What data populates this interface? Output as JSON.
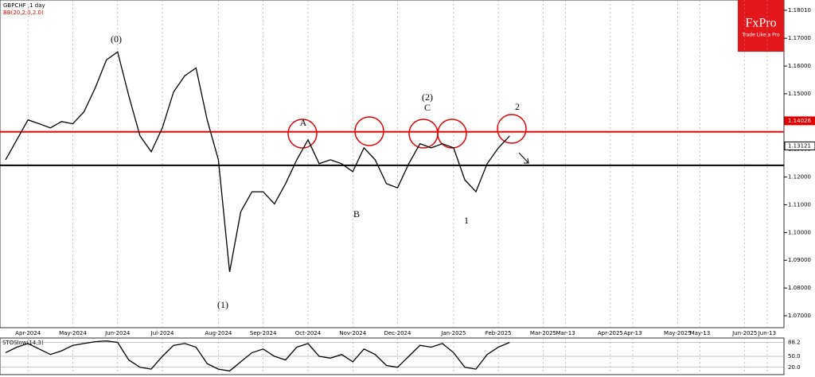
{
  "chart_data": {
    "type": "line",
    "title": "GBPCHF ,1 day",
    "indicator": "BB(20,2,0,2.0)",
    "logo": "FxPro",
    "tagline": "Trade Like a Pro",
    "categories": [
      null,
      null,
      "Apr-2024",
      null,
      null,
      null,
      "May-2024",
      null,
      null,
      null,
      "Jun-2024",
      null,
      null,
      null,
      "Jul-2024",
      null,
      null,
      null,
      null,
      "Aug-2024",
      null,
      null,
      null,
      "Sep-2024",
      null,
      null,
      null,
      "Oct-2024",
      null,
      null,
      null,
      "Nov-2024",
      null,
      null,
      null,
      "Dec-2024",
      null,
      null,
      null,
      null,
      "Jan-2025",
      null,
      null,
      null,
      "Feb-2025",
      null,
      null,
      null,
      "Mar-2025",
      null,
      "Mar-13",
      null,
      null,
      null,
      "Apr-2025",
      null,
      "Apr-13",
      null,
      null,
      null,
      "May-2025",
      null,
      "May-13",
      null,
      null,
      null,
      "Jun-2025",
      null,
      "Jun-13",
      null
    ],
    "series": [
      {
        "color": "#000000",
        "values": [
          1.1262,
          1.1334,
          1.1406,
          1.1392,
          1.1377,
          1.14,
          1.1392,
          1.1435,
          1.1521,
          1.1622,
          1.1651,
          1.1493,
          1.1348,
          1.1291,
          1.1377,
          1.1507,
          1.1565,
          1.1593,
          1.1406,
          1.1262,
          1.0858,
          1.1075,
          1.1147,
          1.1147,
          1.1103,
          1.1176,
          1.1262,
          1.1334,
          1.1248,
          1.1262,
          1.1248,
          1.1219,
          1.1305,
          1.1262,
          1.1176,
          1.1161,
          1.1248,
          1.132,
          1.1305,
          1.132,
          1.1305,
          1.119,
          1.1147,
          1.1248,
          1.1305,
          1.1348,
          null,
          null,
          null,
          null,
          null,
          null,
          null,
          null,
          null,
          null,
          null,
          null,
          null,
          null,
          null,
          null,
          null,
          null,
          null,
          null,
          null,
          null,
          null,
          null
        ]
      }
    ],
    "ylim": [
      1.0657,
      1.1838
    ],
    "yticks": [
      {
        "value": 1.1801,
        "label": "1.18010"
      },
      {
        "value": 1.17,
        "label": "1.17000"
      },
      {
        "value": 1.16,
        "label": "1.16000"
      },
      {
        "value": 1.15,
        "label": "1.15000"
      },
      {
        "value": 1.14,
        "label": "1.14000"
      },
      {
        "value": 1.13,
        "label": "1.13000"
      },
      {
        "value": 1.12,
        "label": "1.12000"
      },
      {
        "value": 1.11,
        "label": "1.11000"
      },
      {
        "value": 1.1,
        "label": "1.10000"
      },
      {
        "value": 1.09,
        "label": "1.09000"
      },
      {
        "value": 1.08,
        "label": "1.08000"
      },
      {
        "value": 1.07,
        "label": "1.07000"
      }
    ],
    "price_labels": [
      {
        "value": 1.14026,
        "label": "1.14026",
        "color": "#e00000"
      },
      {
        "value": 1.13121,
        "label": "1.13121",
        "color": "#000000"
      }
    ],
    "levels": [
      {
        "value": 1.1363,
        "color": "#ff0000"
      },
      {
        "value": 1.1242,
        "color": "#000000"
      }
    ],
    "annotations": [
      "(0)",
      "(1)",
      "A",
      "B",
      "(2)",
      "C",
      "1",
      "2"
    ],
    "grid": true,
    "oscillator": {
      "title": "STOSlow(14,3)",
      "ylim": [
        0,
        100
      ],
      "yticks": [
        {
          "value": 88.2,
          "label": "88.2"
        },
        {
          "value": 50,
          "label": "50.0"
        },
        {
          "value": 20,
          "label": "20.0"
        }
      ],
      "values": [
        60,
        75,
        85,
        70,
        55,
        65,
        80,
        85,
        90,
        92,
        88,
        40,
        20,
        15,
        50,
        80,
        85,
        75,
        30,
        15,
        10,
        35,
        60,
        70,
        50,
        40,
        75,
        85,
        50,
        45,
        55,
        35,
        70,
        55,
        25,
        20,
        50,
        80,
        75,
        85,
        60,
        20,
        15,
        55,
        75,
        88,
        null,
        null,
        null,
        null,
        null,
        null,
        null,
        null,
        null,
        null,
        null,
        null,
        null,
        null,
        null,
        null,
        null,
        null,
        null,
        null,
        null,
        null,
        null,
        null
      ]
    }
  }
}
